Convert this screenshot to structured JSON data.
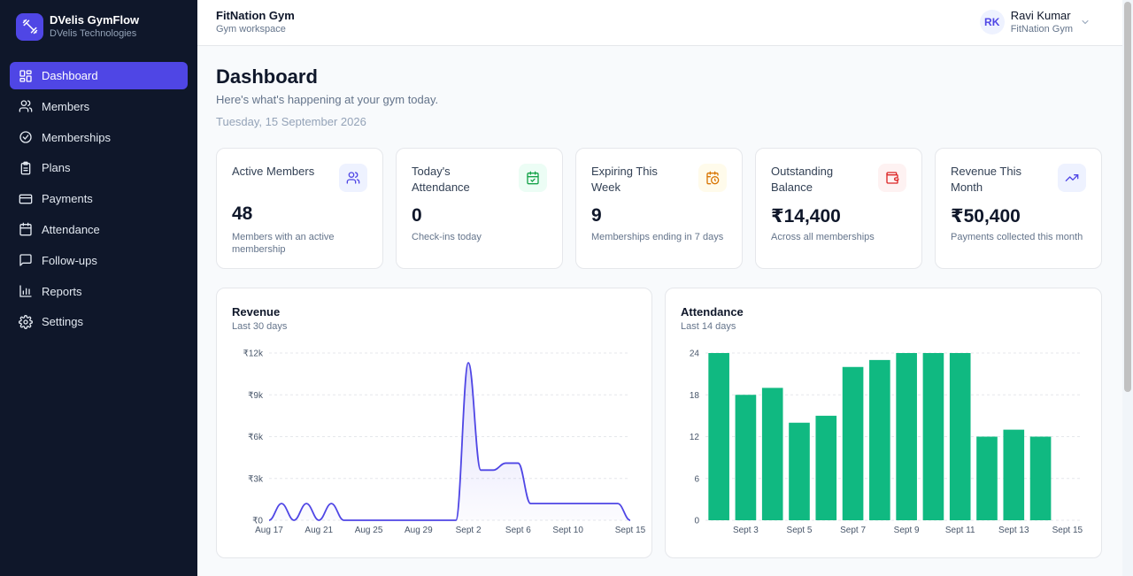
{
  "brand": {
    "name": "DVelis GymFlow",
    "company": "DVelis Technologies"
  },
  "sidebar": {
    "items": [
      {
        "label": "Dashboard",
        "icon": "dashboard-icon",
        "active": true
      },
      {
        "label": "Members",
        "icon": "users-icon"
      },
      {
        "label": "Memberships",
        "icon": "check-circle-icon"
      },
      {
        "label": "Plans",
        "icon": "clipboard-icon"
      },
      {
        "label": "Payments",
        "icon": "credit-card-icon"
      },
      {
        "label": "Attendance",
        "icon": "calendar-icon"
      },
      {
        "label": "Follow-ups",
        "icon": "message-icon"
      },
      {
        "label": "Reports",
        "icon": "bar-chart-icon"
      },
      {
        "label": "Settings",
        "icon": "gear-icon"
      }
    ]
  },
  "topbar": {
    "workspace_name": "FitNation Gym",
    "workspace_sub": "Gym workspace",
    "user_initials": "RK",
    "user_name": "Ravi Kumar",
    "user_org": "FitNation Gym"
  },
  "page": {
    "title": "Dashboard",
    "subtitle": "Here's what's happening at your gym today.",
    "date": "Tuesday, 15 September 2026"
  },
  "cards": [
    {
      "label": "Active Members",
      "value": "48",
      "note": "Members with an active membership",
      "icon": "users-icon",
      "icon_color": "#4f46e5",
      "icon_bg": "#eef2ff"
    },
    {
      "label": "Today's Attendance",
      "value": "0",
      "note": "Check-ins today",
      "icon": "calendar-check-icon",
      "icon_color": "#16a34a",
      "icon_bg": "#ecfdf5"
    },
    {
      "label": "Expiring This Week",
      "value": "9",
      "note": "Memberships ending in 7 days",
      "icon": "calendar-clock-icon",
      "icon_color": "#d97706",
      "icon_bg": "#fffbeb"
    },
    {
      "label": "Outstanding Balance",
      "value": "₹14,400",
      "note": "Across all memberships",
      "icon": "wallet-icon",
      "icon_color": "#dc2626",
      "icon_bg": "#fef2f2"
    },
    {
      "label": "Revenue This Month",
      "value": "₹50,400",
      "note": "Payments collected this month",
      "icon": "trending-up-icon",
      "icon_color": "#4f46e5",
      "icon_bg": "#eef2ff"
    }
  ],
  "revenue_panel": {
    "title": "Revenue",
    "subtitle": "Last 30 days"
  },
  "attendance_panel": {
    "title": "Attendance",
    "subtitle": "Last 14 days"
  },
  "chart_data": [
    {
      "type": "area",
      "title": "Revenue",
      "subtitle": "Last 30 days",
      "color": "#4f46e5",
      "x_tick_labels": [
        "Aug 17",
        "Aug 21",
        "Aug 25",
        "Aug 29",
        "Sept 2",
        "Sept 6",
        "Sept 10",
        "Sept 15"
      ],
      "y_tick_labels": [
        "₹0",
        "₹3k",
        "₹6k",
        "₹9k",
        "₹12k"
      ],
      "ylim": [
        0,
        12000
      ],
      "x": [
        "Aug 17",
        "Aug 18",
        "Aug 19",
        "Aug 20",
        "Aug 21",
        "Aug 22",
        "Aug 23",
        "Aug 24",
        "Aug 25",
        "Aug 26",
        "Aug 27",
        "Aug 28",
        "Aug 29",
        "Aug 30",
        "Aug 31",
        "Sept 1",
        "Sept 2",
        "Sept 3",
        "Sept 4",
        "Sept 5",
        "Sept 6",
        "Sept 7",
        "Sept 8",
        "Sept 9",
        "Sept 10",
        "Sept 11",
        "Sept 12",
        "Sept 13",
        "Sept 14",
        "Sept 15"
      ],
      "values": [
        0,
        1200,
        0,
        1200,
        0,
        1200,
        0,
        0,
        0,
        0,
        0,
        0,
        0,
        0,
        0,
        0,
        11300,
        3600,
        3600,
        4100,
        4100,
        1200,
        1200,
        1200,
        1200,
        1200,
        1200,
        1200,
        1200,
        0
      ],
      "grid": true
    },
    {
      "type": "bar",
      "title": "Attendance",
      "subtitle": "Last 14 days",
      "color": "#10b981",
      "categories": [
        "Sept 2",
        "Sept 3",
        "Sept 4",
        "Sept 5",
        "Sept 6",
        "Sept 7",
        "Sept 8",
        "Sept 9",
        "Sept 10",
        "Sept 11",
        "Sept 12",
        "Sept 13",
        "Sept 14",
        "Sept 15"
      ],
      "x_tick_labels": [
        "Sept 3",
        "Sept 5",
        "Sept 7",
        "Sept 9",
        "Sept 11",
        "Sept 13",
        "Sept 15"
      ],
      "values": [
        24,
        18,
        19,
        14,
        15,
        22,
        23,
        24,
        24,
        24,
        12,
        13,
        12,
        0
      ],
      "y_tick_labels": [
        "0",
        "6",
        "12",
        "18",
        "24"
      ],
      "ylim": [
        0,
        24
      ],
      "grid": true
    }
  ]
}
